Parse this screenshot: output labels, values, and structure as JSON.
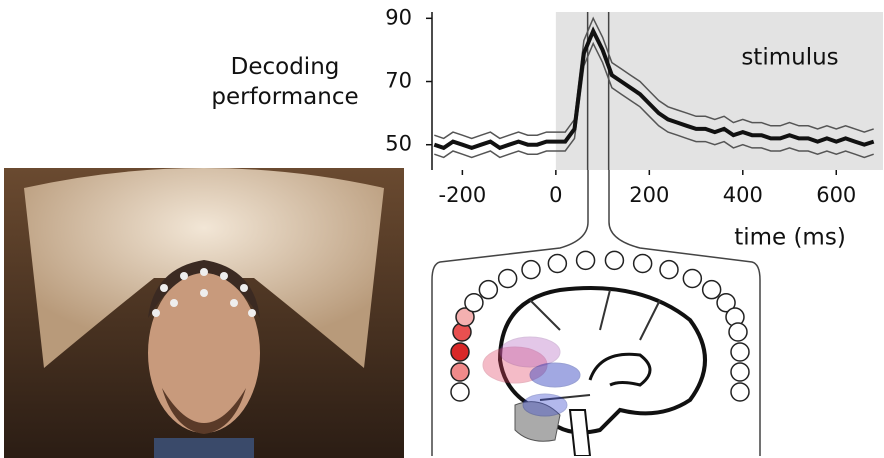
{
  "chart_data": {
    "type": "line",
    "ylabel": "Decoding performance",
    "xlabel": "time (ms)",
    "annotation": "stimulus",
    "x": [
      -260,
      -240,
      -220,
      -200,
      -180,
      -160,
      -140,
      -120,
      -100,
      -80,
      -60,
      -40,
      -20,
      0,
      20,
      40,
      60,
      80,
      100,
      120,
      140,
      160,
      180,
      200,
      220,
      240,
      260,
      280,
      300,
      320,
      340,
      360,
      380,
      400,
      420,
      440,
      460,
      480,
      500,
      520,
      540,
      560,
      580,
      600,
      620,
      640,
      660,
      680
    ],
    "series": [
      {
        "color": "#111111",
        "values": [
          50,
          49,
          51,
          50,
          49,
          50,
          51,
          49,
          50,
          51,
          50,
          50,
          51,
          51,
          51,
          55,
          79,
          86,
          80,
          72,
          70,
          68,
          66,
          63,
          60,
          58,
          57,
          56,
          55,
          55,
          54,
          55,
          53,
          54,
          53,
          53,
          52,
          52,
          53,
          52,
          52,
          51,
          52,
          51,
          52,
          51,
          50,
          51
        ]
      }
    ],
    "band": {
      "color": "#555555",
      "upper": [
        53,
        52,
        54,
        53,
        52,
        53,
        54,
        52,
        53,
        54,
        53,
        53,
        54,
        54,
        54,
        58,
        83,
        90,
        84,
        76,
        74,
        72,
        70,
        67,
        64,
        62,
        61,
        60,
        59,
        59,
        58,
        59,
        57,
        58,
        57,
        57,
        56,
        56,
        57,
        56,
        56,
        55,
        56,
        55,
        56,
        55,
        54,
        55
      ],
      "lower": [
        47,
        46,
        48,
        47,
        46,
        47,
        48,
        46,
        47,
        48,
        47,
        47,
        48,
        48,
        48,
        52,
        75,
        82,
        76,
        68,
        66,
        64,
        62,
        59,
        56,
        54,
        53,
        52,
        51,
        51,
        50,
        51,
        49,
        50,
        49,
        49,
        48,
        48,
        49,
        48,
        48,
        47,
        48,
        47,
        48,
        47,
        46,
        47
      ]
    },
    "stimulus_onset": 0,
    "highlight_times": [
      68,
      113
    ],
    "xlim": [
      -265,
      700
    ],
    "ylim": [
      42,
      92
    ],
    "xticks": [
      -200,
      0,
      200,
      400,
      600
    ],
    "yticks": [
      50,
      70,
      90
    ]
  }
}
